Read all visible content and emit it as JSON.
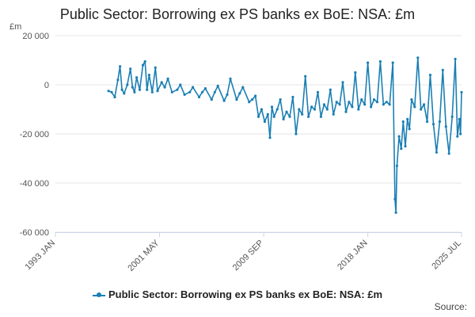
{
  "chart_data": {
    "type": "line",
    "title": "Public Sector: Borrowing ex PS banks ex BoE: NSA: £m",
    "y_unit_label": "£m",
    "source_label": "Source:",
    "y_ticks": [
      20000,
      0,
      -20000,
      -40000,
      -60000
    ],
    "y_tick_labels": [
      "20 000",
      "0",
      "-20 000",
      "-40 000",
      "-60 000"
    ],
    "ylim": [
      -60000,
      20000
    ],
    "xlim": [
      1993.0,
      2025.5
    ],
    "x_ticks": [
      1993.0,
      2001.33,
      2009.67,
      2018.0,
      2025.5
    ],
    "x_tick_labels": [
      "1993 JAN",
      "2001 MAY",
      "2009 SEP",
      "2018 JAN",
      "2025 JUL"
    ],
    "grid": true,
    "legend_position": "bottom",
    "series": [
      {
        "name": "Public Sector: Borrowing ex PS banks ex BoE: NSA: £m",
        "color": "#1a7fb4",
        "points": [
          [
            1997.25,
            -2500
          ],
          [
            1997.5,
            -3000
          ],
          [
            1997.75,
            -5000
          ],
          [
            1998.0,
            2000
          ],
          [
            1998.17,
            7500
          ],
          [
            1998.33,
            -2000
          ],
          [
            1998.5,
            -3500
          ],
          [
            1998.75,
            0
          ],
          [
            1999.0,
            6500
          ],
          [
            1999.17,
            -1000
          ],
          [
            1999.33,
            -3000
          ],
          [
            1999.5,
            3000
          ],
          [
            1999.75,
            -2000
          ],
          [
            2000.0,
            8000
          ],
          [
            2000.17,
            9500
          ],
          [
            2000.33,
            -2000
          ],
          [
            2000.5,
            4000
          ],
          [
            2000.75,
            -3000
          ],
          [
            2001.0,
            7000
          ],
          [
            2001.17,
            -2500
          ],
          [
            2001.5,
            1000
          ],
          [
            2001.75,
            -1000
          ],
          [
            2002.0,
            2500
          ],
          [
            2002.33,
            -3000
          ],
          [
            2002.75,
            -2000
          ],
          [
            2003.0,
            0
          ],
          [
            2003.33,
            -4000
          ],
          [
            2003.75,
            -3000
          ],
          [
            2004.0,
            -1000
          ],
          [
            2004.5,
            -5000
          ],
          [
            2004.75,
            -3000
          ],
          [
            2005.0,
            -1500
          ],
          [
            2005.5,
            -6000
          ],
          [
            2005.75,
            -3000
          ],
          [
            2006.0,
            -500
          ],
          [
            2006.5,
            -6500
          ],
          [
            2006.75,
            -4000
          ],
          [
            2007.0,
            2500
          ],
          [
            2007.5,
            -6000
          ],
          [
            2007.75,
            -3500
          ],
          [
            2008.0,
            -1000
          ],
          [
            2008.5,
            -7000
          ],
          [
            2008.75,
            -6000
          ],
          [
            2009.0,
            -4500
          ],
          [
            2009.25,
            -13000
          ],
          [
            2009.5,
            -10000
          ],
          [
            2009.75,
            -15000
          ],
          [
            2010.0,
            -12000
          ],
          [
            2010.17,
            -21500
          ],
          [
            2010.33,
            -9000
          ],
          [
            2010.5,
            -13000
          ],
          [
            2010.75,
            -10000
          ],
          [
            2011.0,
            -6000
          ],
          [
            2011.25,
            -14000
          ],
          [
            2011.5,
            -11000
          ],
          [
            2011.75,
            -13000
          ],
          [
            2012.0,
            -5000
          ],
          [
            2012.25,
            -20000
          ],
          [
            2012.5,
            -10000
          ],
          [
            2012.75,
            -12000
          ],
          [
            2013.0,
            3500
          ],
          [
            2013.25,
            -13000
          ],
          [
            2013.5,
            -9000
          ],
          [
            2013.75,
            -10000
          ],
          [
            2014.0,
            -3000
          ],
          [
            2014.25,
            -13000
          ],
          [
            2014.5,
            -8000
          ],
          [
            2014.75,
            -10000
          ],
          [
            2015.0,
            -2000
          ],
          [
            2015.25,
            -12000
          ],
          [
            2015.5,
            -7000
          ],
          [
            2015.75,
            -8000
          ],
          [
            2016.0,
            1000
          ],
          [
            2016.25,
            -11000
          ],
          [
            2016.5,
            -7000
          ],
          [
            2016.75,
            -9000
          ],
          [
            2017.0,
            5000
          ],
          [
            2017.25,
            -10000
          ],
          [
            2017.5,
            -6000
          ],
          [
            2017.75,
            -8000
          ],
          [
            2018.0,
            9000
          ],
          [
            2018.25,
            -9000
          ],
          [
            2018.5,
            -6000
          ],
          [
            2018.75,
            -7000
          ],
          [
            2019.0,
            9500
          ],
          [
            2019.25,
            -8000
          ],
          [
            2019.5,
            -7000
          ],
          [
            2019.75,
            -8000
          ],
          [
            2020.0,
            9000
          ],
          [
            2020.17,
            -46500
          ],
          [
            2020.25,
            -52000
          ],
          [
            2020.33,
            -33000
          ],
          [
            2020.5,
            -21000
          ],
          [
            2020.67,
            -26000
          ],
          [
            2020.83,
            -15000
          ],
          [
            2021.0,
            -25000
          ],
          [
            2021.17,
            -14000
          ],
          [
            2021.33,
            -18000
          ],
          [
            2021.5,
            -6000
          ],
          [
            2021.75,
            -9000
          ],
          [
            2022.0,
            11000
          ],
          [
            2022.25,
            -10000
          ],
          [
            2022.5,
            -8000
          ],
          [
            2022.75,
            -15000
          ],
          [
            2023.0,
            4000
          ],
          [
            2023.25,
            -16000
          ],
          [
            2023.5,
            -27500
          ],
          [
            2023.75,
            -15000
          ],
          [
            2024.0,
            6000
          ],
          [
            2024.25,
            -17000
          ],
          [
            2024.5,
            -28000
          ],
          [
            2024.75,
            -13000
          ],
          [
            2025.0,
            10500
          ],
          [
            2025.17,
            -21000
          ],
          [
            2025.33,
            -14000
          ],
          [
            2025.42,
            -20000
          ],
          [
            2025.5,
            -3000
          ]
        ]
      }
    ]
  }
}
